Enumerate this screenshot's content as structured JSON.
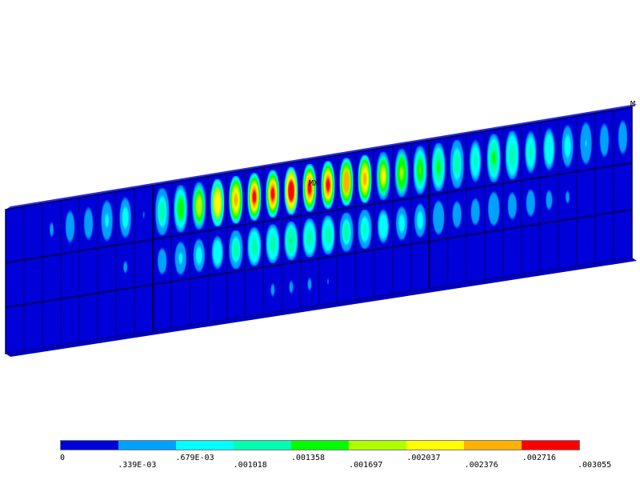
{
  "plot": {
    "mx_label": "MX",
    "mn_label": "M"
  },
  "legend": {
    "colors": [
      "#0000d8",
      "#00a0ff",
      "#00ffff",
      "#00ffb0",
      "#00ff00",
      "#b0ff00",
      "#ffff00",
      "#ffb000",
      "#ff0000"
    ],
    "labels": [
      "0",
      ".339E-03",
      ".679E-03",
      ".001018",
      ".001358",
      ".001697",
      ".002037",
      ".002376",
      ".002716",
      ".003055"
    ],
    "values": [
      0,
      0.000339,
      0.000679,
      0.001018,
      0.001358,
      0.001697,
      0.002037,
      0.002376,
      0.002716,
      0.003055
    ]
  },
  "contour": {
    "panel_peak_values": [
      0.00013,
      0.00024,
      0.00036,
      0.00048,
      0.0006,
      0.00072,
      0.00084,
      0.00034,
      0.0012,
      0.0016,
      0.002,
      0.0023,
      0.0026,
      0.0028,
      0.003,
      0.003055,
      0.003,
      0.0029,
      0.0027,
      0.0025,
      0.0022,
      0.0019,
      0.0017,
      0.0014,
      0.0012,
      0.0011,
      0.0015,
      0.0013,
      0.0011,
      0.00095,
      0.0008,
      0.00068,
      0.00058,
      0.00048
    ]
  }
}
